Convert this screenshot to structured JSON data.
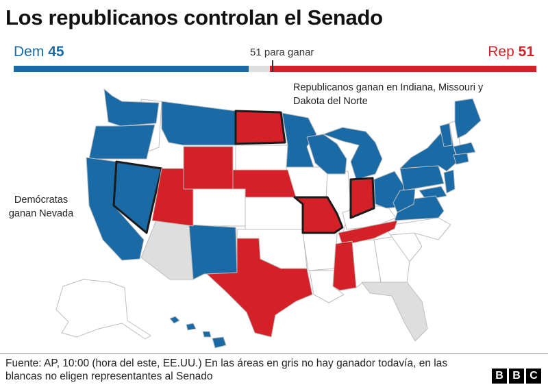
{
  "title": "Los republicanos controlan el Senado",
  "seats": {
    "dem_label": "Dem",
    "dem_count": "45",
    "rep_label": "Rep",
    "rep_count": "51",
    "target_label": "51 para ganar",
    "dem_fraction": 0.45,
    "undecided_fraction": 0.04,
    "rep_fraction": 0.51
  },
  "annotations": {
    "rep": "Republicanos ganan en Indiana, Missouri y Dakota del Norte",
    "dem": "Demócratas ganan Nevada"
  },
  "colors": {
    "dem": "#1a6aa5",
    "rep": "#d42027",
    "undecided": "#dedede",
    "no_election": "#ffffff"
  },
  "states": {
    "dem": [
      "WA",
      "OR",
      "CA",
      "NV",
      "MT",
      "MN",
      "WI",
      "MI",
      "NM",
      "OH",
      "PA",
      "NY",
      "VT",
      "ME",
      "MA",
      "CT",
      "NJ",
      "MD",
      "DE",
      "VA",
      "WV",
      "HI"
    ],
    "rep": [
      "ND",
      "WY",
      "UT",
      "NE",
      "MO",
      "IN",
      "TN",
      "MS",
      "TX"
    ],
    "undecided": [
      "AZ",
      "FL"
    ],
    "flipped_highlight": [
      "NV",
      "ND",
      "MO",
      "IN"
    ]
  },
  "footer": "Fuente: AP, 10:00 (hora del este, EE.UU.) En las áreas en gris no hay ganador todavía, en las blancas no eligen representantes al Senado",
  "logo": [
    "B",
    "B",
    "C"
  ]
}
